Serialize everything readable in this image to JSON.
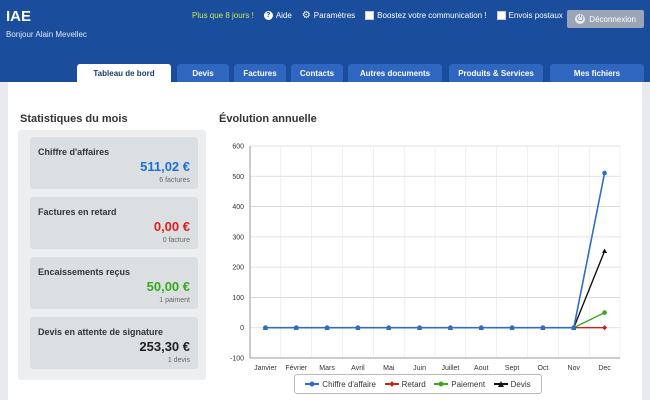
{
  "app": {
    "name": "IAE",
    "greeting": "Bonjour Alain Mevellec"
  },
  "topbar": {
    "promo": "Plus que 8 jours !",
    "aide": "Aide",
    "parametres": "Paramètres",
    "boost": "Boostez votre communication !",
    "envois": "Envois postaux",
    "logout": "Déconnexion"
  },
  "tabs": [
    {
      "label": "Tableau de bord"
    },
    {
      "label": "Devis"
    },
    {
      "label": "Factures"
    },
    {
      "label": "Contacts"
    },
    {
      "label": "Autres documents"
    },
    {
      "label": "Produits & Services"
    },
    {
      "label": "Mes fichiers"
    }
  ],
  "stats": {
    "title": "Statistiques du mois",
    "items": [
      {
        "label": "Chiffre d'affaires",
        "value": "511,02 €",
        "sub": "6 factures",
        "color": "#1b6fd6"
      },
      {
        "label": "Factures en retard",
        "value": "0,00 €",
        "sub": "0 facture",
        "color": "#d9201a"
      },
      {
        "label": "Encaissements reçus",
        "value": "50,00 €",
        "sub": "1 paiment",
        "color": "#35a81c"
      },
      {
        "label": "Devis en attente de signature",
        "value": "253,30 €",
        "sub": "1 devis",
        "color": "#1f1f1f"
      }
    ]
  },
  "chart_title": "Évolution annuelle",
  "chart_data": {
    "type": "line",
    "x": [
      "Janvier",
      "Février",
      "Mars",
      "Avril",
      "Mai",
      "Juin",
      "Juillet",
      "Aout",
      "Sept",
      "Oct",
      "Nov",
      "Dec"
    ],
    "ylim": [
      -100,
      600
    ],
    "yticks": [
      -100,
      0,
      100,
      200,
      300,
      400,
      500,
      600
    ],
    "grid": true,
    "legend": "bottom",
    "series": [
      {
        "name": "Chiffre d'affaire",
        "color": "#2e6fc0",
        "marker": "circle",
        "values": [
          0,
          0,
          0,
          0,
          0,
          0,
          0,
          0,
          0,
          0,
          0,
          511.02
        ]
      },
      {
        "name": "Retard",
        "color": "#c8241d",
        "marker": "diamond",
        "values": [
          0,
          0,
          0,
          0,
          0,
          0,
          0,
          0,
          0,
          0,
          0,
          0
        ]
      },
      {
        "name": "Paiement",
        "color": "#3aa619",
        "marker": "circle",
        "values": [
          0,
          0,
          0,
          0,
          0,
          0,
          0,
          0,
          0,
          0,
          0,
          50
        ]
      },
      {
        "name": "Devis",
        "color": "#111111",
        "marker": "arrow",
        "values": [
          0,
          0,
          0,
          0,
          0,
          0,
          0,
          0,
          0,
          0,
          0,
          253.3
        ]
      }
    ]
  }
}
